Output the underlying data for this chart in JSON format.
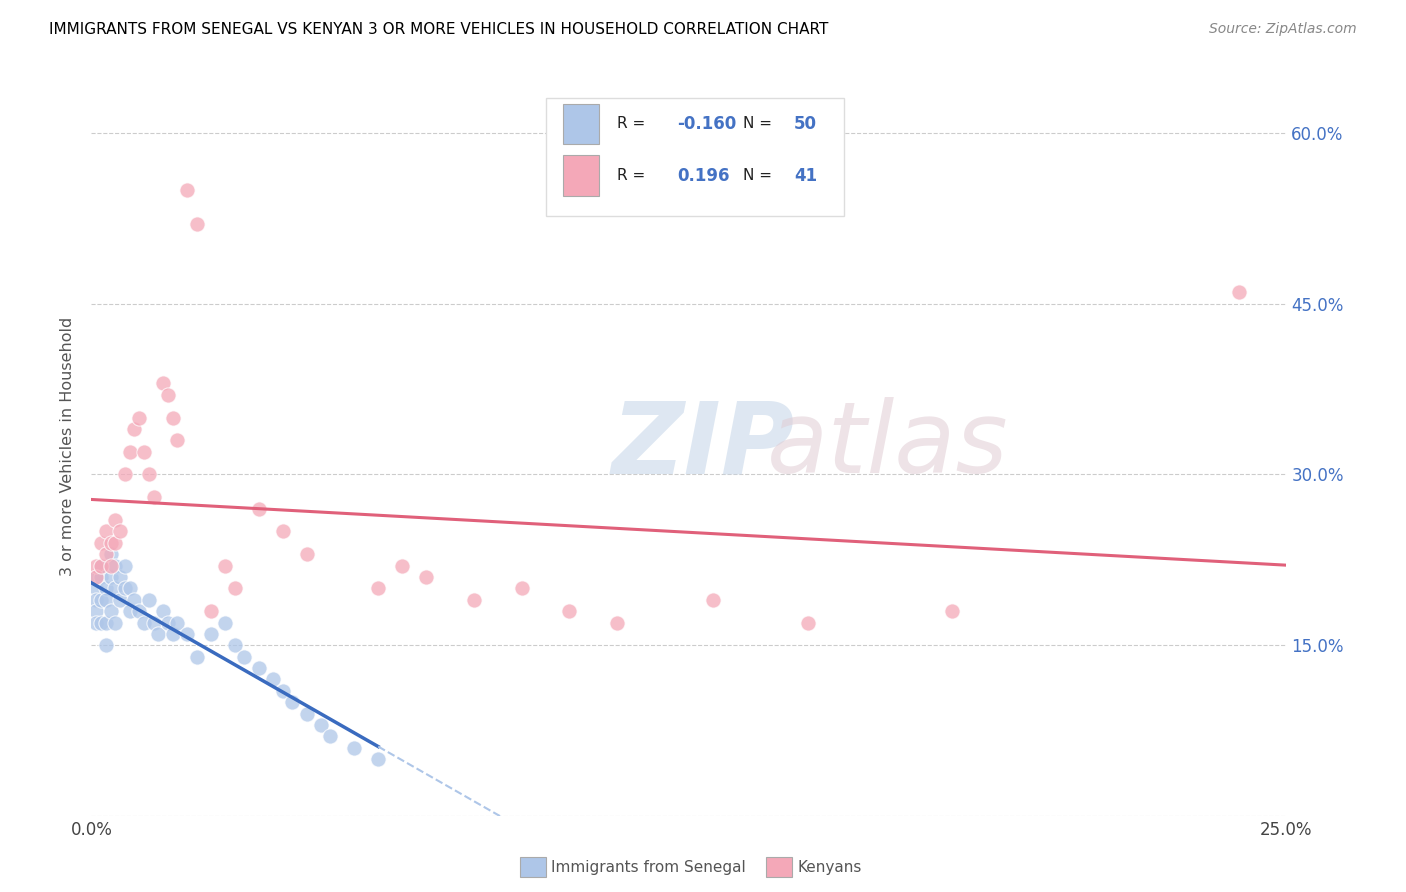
{
  "title": "IMMIGRANTS FROM SENEGAL VS KENYAN 3 OR MORE VEHICLES IN HOUSEHOLD CORRELATION CHART",
  "source": "Source: ZipAtlas.com",
  "ylabel": "3 or more Vehicles in Household",
  "xmin": 0.0,
  "xmax": 0.25,
  "ymin": 0.0,
  "ymax": 0.65,
  "x_ticks": [
    0.0,
    0.05,
    0.1,
    0.15,
    0.2,
    0.25
  ],
  "x_tick_labels": [
    "0.0%",
    "",
    "",
    "",
    "",
    "25.0%"
  ],
  "y_ticks": [
    0.0,
    0.15,
    0.3,
    0.45,
    0.6
  ],
  "y_tick_labels_right": [
    "",
    "15.0%",
    "30.0%",
    "45.0%",
    "60.0%"
  ],
  "legend_label1": "Immigrants from Senegal",
  "legend_label2": "Kenyans",
  "R1": "-0.160",
  "N1": "50",
  "R2": "0.196",
  "N2": "41",
  "color1": "#aec6e8",
  "color2": "#f4a8b8",
  "line1_solid_color": "#3a6bbf",
  "line1_dash_color": "#aec6e8",
  "line2_color": "#e0607a",
  "senegal_x": [
    0.001,
    0.001,
    0.001,
    0.001,
    0.001,
    0.002,
    0.002,
    0.002,
    0.002,
    0.003,
    0.003,
    0.003,
    0.003,
    0.004,
    0.004,
    0.004,
    0.005,
    0.005,
    0.005,
    0.006,
    0.006,
    0.007,
    0.007,
    0.008,
    0.008,
    0.009,
    0.01,
    0.011,
    0.012,
    0.013,
    0.014,
    0.015,
    0.016,
    0.017,
    0.018,
    0.02,
    0.022,
    0.025,
    0.028,
    0.03,
    0.032,
    0.035,
    0.038,
    0.04,
    0.042,
    0.045,
    0.048,
    0.05,
    0.055,
    0.06
  ],
  "senegal_y": [
    0.21,
    0.2,
    0.19,
    0.18,
    0.17,
    0.22,
    0.21,
    0.19,
    0.17,
    0.2,
    0.19,
    0.17,
    0.15,
    0.23,
    0.21,
    0.18,
    0.22,
    0.2,
    0.17,
    0.21,
    0.19,
    0.22,
    0.2,
    0.2,
    0.18,
    0.19,
    0.18,
    0.17,
    0.19,
    0.17,
    0.16,
    0.18,
    0.17,
    0.16,
    0.17,
    0.16,
    0.14,
    0.16,
    0.17,
    0.15,
    0.14,
    0.13,
    0.12,
    0.11,
    0.1,
    0.09,
    0.08,
    0.07,
    0.06,
    0.05
  ],
  "kenyan_x": [
    0.001,
    0.001,
    0.002,
    0.002,
    0.003,
    0.003,
    0.004,
    0.004,
    0.005,
    0.005,
    0.006,
    0.007,
    0.008,
    0.009,
    0.01,
    0.011,
    0.012,
    0.013,
    0.015,
    0.016,
    0.017,
    0.018,
    0.02,
    0.022,
    0.025,
    0.028,
    0.03,
    0.035,
    0.04,
    0.045,
    0.06,
    0.065,
    0.07,
    0.08,
    0.09,
    0.1,
    0.11,
    0.13,
    0.15,
    0.18,
    0.24
  ],
  "kenyan_y": [
    0.22,
    0.21,
    0.24,
    0.22,
    0.25,
    0.23,
    0.24,
    0.22,
    0.26,
    0.24,
    0.25,
    0.3,
    0.32,
    0.34,
    0.35,
    0.32,
    0.3,
    0.28,
    0.38,
    0.37,
    0.35,
    0.33,
    0.55,
    0.52,
    0.18,
    0.22,
    0.2,
    0.27,
    0.25,
    0.23,
    0.2,
    0.22,
    0.21,
    0.19,
    0.2,
    0.18,
    0.17,
    0.19,
    0.17,
    0.18,
    0.46
  ]
}
